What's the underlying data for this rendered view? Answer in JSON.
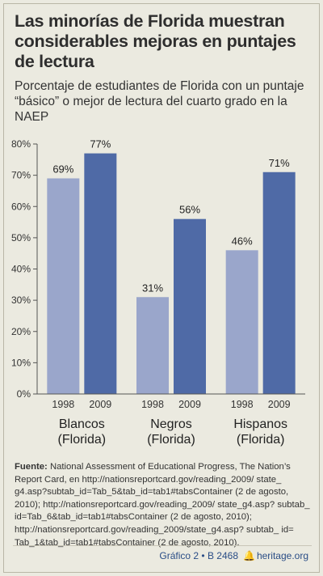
{
  "title": "Las minorías de Florida muestran considerables mejoras en puntajes de lectura",
  "subtitle": "Porcentaje de estudiantes de Florida con un puntaje “básico” o mejor de lectura del cuarto grado en la NAEP",
  "colors": {
    "series_1998": "#9aa6cb",
    "series_2009": "#4f6aa6",
    "background": "#ebeae0",
    "footer": "#2a4d86"
  },
  "chart_data": {
    "type": "bar",
    "categories": [
      "Blancos (Florida)",
      "Negros (Florida)",
      "Hispanos (Florida)"
    ],
    "category_lines": [
      [
        "Blancos",
        "(Florida)"
      ],
      [
        "Negros",
        "(Florida)"
      ],
      [
        "Hispanos",
        "(Florida)"
      ]
    ],
    "series": [
      {
        "name": "1998",
        "values": [
          69,
          31,
          46
        ],
        "labels": [
          "69%",
          "31%",
          "46%"
        ]
      },
      {
        "name": "2009",
        "values": [
          77,
          56,
          71
        ],
        "labels": [
          "77%",
          "56%",
          "71%"
        ]
      }
    ],
    "ylim": [
      0,
      80
    ],
    "yticks": [
      0,
      10,
      20,
      30,
      40,
      50,
      60,
      70,
      80
    ],
    "ytick_labels": [
      "0%",
      "10%",
      "20%",
      "30%",
      "40%",
      "50%",
      "60%",
      "70%",
      "80%"
    ],
    "xlabel": "",
    "ylabel": "",
    "grid": false,
    "legend": "none"
  },
  "source": {
    "label": "Fuente:",
    "text": "National Assessment of Educational Progress, The Nation’s Report Card, en http://nationsreportcard.gov/reading_2009/ state_ g4.asp?subtab_id=Tab_5&tab_id=tab1#tabsContainer (2 de agosto, 2010); http://nationsreportcard.gov/reading_2009/ state_g4.asp? subtab_ id=Tab_6&tab_id=tab1#tabsContainer (2 de agosto, 2010); http://nationsreportcard.gov/reading_2009/state_g4.asp? subtab_ id= Tab_1&tab_id=tab1#tabsContainer (2 de agosto, 2010)."
  },
  "footer": {
    "chart_ref": "Gráfico 2 • B 2468",
    "site": "heritage.org"
  }
}
